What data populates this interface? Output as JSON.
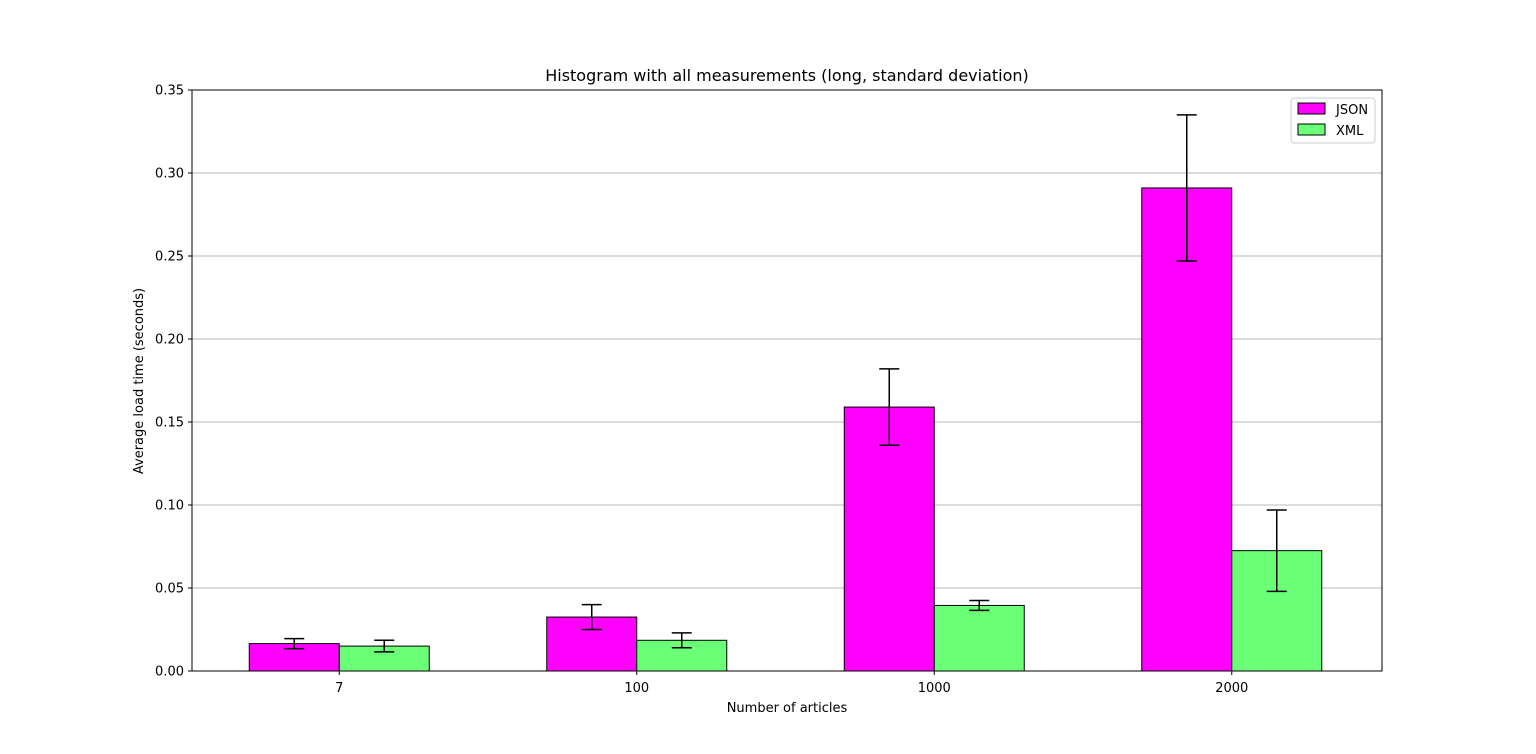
{
  "chart_data": {
    "type": "bar",
    "title": "Histogram with all measurements (long, standard deviation)",
    "xlabel": "Number of articles",
    "ylabel": "Average load time (seconds)",
    "categories": [
      "7",
      "100",
      "1000",
      "2000"
    ],
    "ylim": [
      0,
      0.35
    ],
    "yticks": [
      "0.00",
      "0.05",
      "0.10",
      "0.15",
      "0.20",
      "0.25",
      "0.30",
      "0.35"
    ],
    "grid": "horizontal",
    "legend_position": "top-right",
    "series": [
      {
        "name": "JSON",
        "color": "#ff00ff",
        "values": [
          0.0165,
          0.0325,
          0.159,
          0.291
        ],
        "errors": [
          0.003,
          0.0075,
          0.023,
          0.044
        ]
      },
      {
        "name": "XML",
        "color": "#6bff77",
        "values": [
          0.015,
          0.0185,
          0.0395,
          0.0725
        ],
        "errors": [
          0.0035,
          0.0045,
          0.003,
          0.0245
        ]
      }
    ]
  }
}
